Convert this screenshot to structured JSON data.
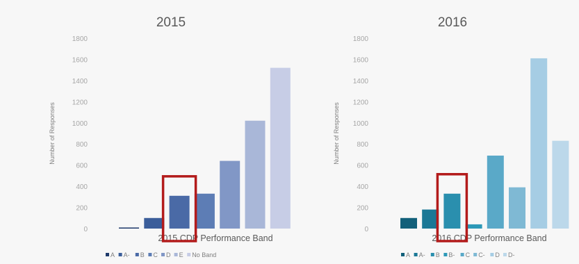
{
  "chart_data": [
    {
      "type": "bar",
      "title": "2015",
      "xlabel": "2015 CDP Performance Band",
      "ylabel": "Number of Responses",
      "ylim": [
        0,
        1800
      ],
      "yticks": [
        0,
        200,
        400,
        600,
        800,
        1000,
        1200,
        1400,
        1600,
        1800
      ],
      "grid": false,
      "legend_position": "bottom",
      "categories": [
        "A",
        "A-",
        "B",
        "C",
        "D",
        "E",
        "No Band"
      ],
      "values": [
        10,
        100,
        310,
        330,
        640,
        1020,
        1520
      ],
      "colors": [
        "#1f3a6b",
        "#3b5e9a",
        "#4a6aa6",
        "#5d7db5",
        "#8197c6",
        "#a9b7d8",
        "#c7cde6"
      ],
      "highlight": {
        "category": "B",
        "color": "#b31b1b"
      }
    },
    {
      "type": "bar",
      "title": "2016",
      "xlabel": "2016 CDP Performance Band",
      "ylabel": "Number of Responses",
      "ylim": [
        0,
        1800
      ],
      "yticks": [
        0,
        200,
        400,
        600,
        800,
        1000,
        1200,
        1400,
        1600,
        1800
      ],
      "grid": false,
      "legend_position": "bottom",
      "categories": [
        "A",
        "A-",
        "B",
        "B-",
        "C",
        "C-",
        "D",
        "D-"
      ],
      "values": [
        100,
        180,
        330,
        40,
        690,
        390,
        1610,
        830
      ],
      "colors": [
        "#12607a",
        "#1b7896",
        "#2a8fae",
        "#2d99b8",
        "#5aa9c8",
        "#7fb9d4",
        "#a6cde4",
        "#bcd8ea"
      ],
      "highlight": {
        "category": "B",
        "color": "#b31b1b"
      }
    }
  ]
}
